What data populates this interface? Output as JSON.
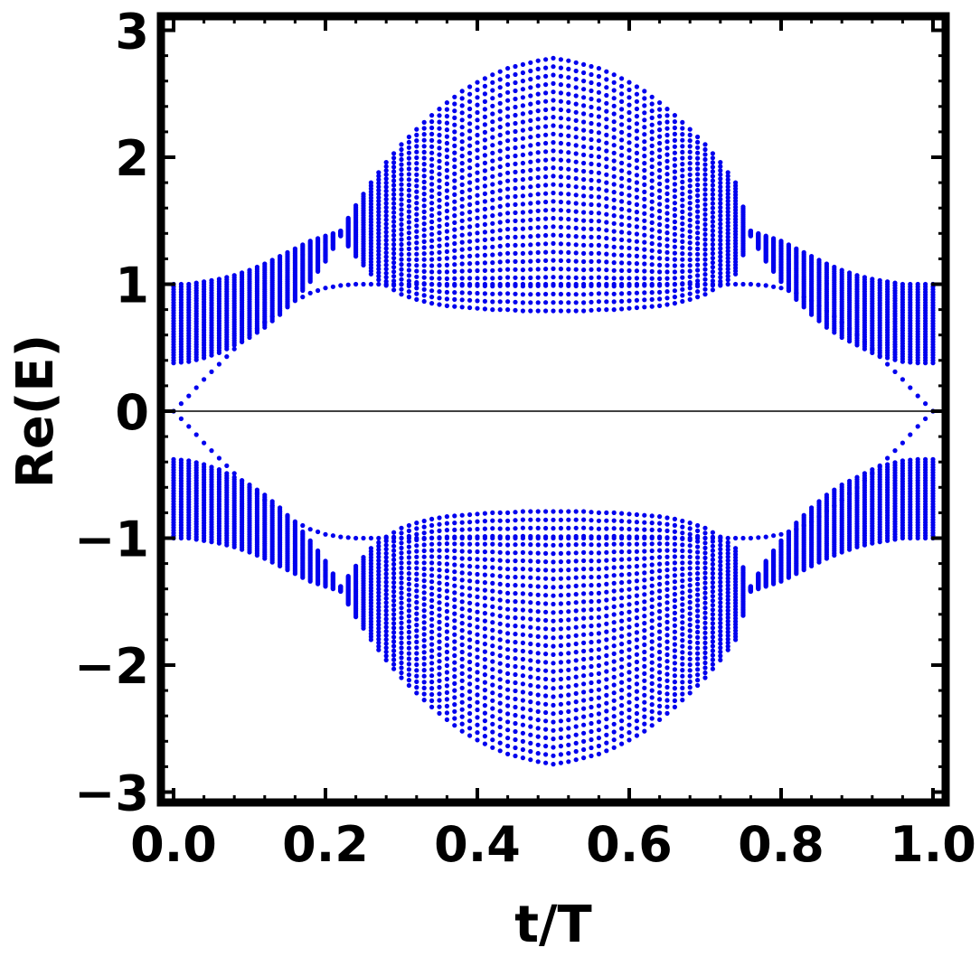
{
  "chart_data": {
    "type": "scatter",
    "xlabel": "t/T",
    "ylabel": "Re(E)",
    "xlim": [
      0.0,
      1.0
    ],
    "ylim": [
      -3.0,
      3.0
    ],
    "xticks": [
      "0.0",
      "0.2",
      "0.4",
      "0.6",
      "0.8",
      "1.0"
    ],
    "yticks": [
      "3",
      "2",
      "1",
      "0",
      "−1",
      "−2",
      "−3"
    ],
    "grid": false,
    "legend": "none",
    "reference_line_y": 0,
    "marker_color": "#0000ee",
    "series": [
      {
        "t": [
          0.0,
          0.02,
          0.04,
          0.06,
          0.08,
          0.1,
          0.12,
          0.14,
          0.16,
          0.18,
          0.2,
          0.22,
          0.24,
          0.26,
          0.28,
          0.3,
          0.32,
          0.34,
          0.36,
          0.38,
          0.4,
          0.42,
          0.44,
          0.46,
          0.48,
          0.5,
          0.52,
          0.54,
          0.56,
          0.58,
          0.6,
          0.62,
          0.64,
          0.66,
          0.68,
          0.7,
          0.72,
          0.74,
          0.76,
          0.78,
          0.8,
          0.82,
          0.84,
          0.86,
          0.88,
          0.9,
          0.92,
          0.94,
          0.96,
          0.98,
          1.0
        ],
        "band_upper_max": [
          1.0,
          1.0,
          1.02,
          1.04,
          1.07,
          1.11,
          1.16,
          1.22,
          1.28,
          1.34,
          1.38,
          1.42,
          1.62,
          1.8,
          1.96,
          2.1,
          2.22,
          2.33,
          2.43,
          2.52,
          2.59,
          2.65,
          2.7,
          2.73,
          2.76,
          2.78,
          2.76,
          2.73,
          2.7,
          2.65,
          2.59,
          2.52,
          2.43,
          2.33,
          2.22,
          2.1,
          1.96,
          1.8,
          1.42,
          1.38,
          1.34,
          1.28,
          1.22,
          1.16,
          1.11,
          1.07,
          1.04,
          1.02,
          1.0,
          1.0,
          1.0
        ],
        "band_upper_min": [
          0.38,
          0.39,
          0.42,
          0.46,
          0.52,
          0.58,
          0.66,
          0.76,
          0.88,
          1.02,
          1.18,
          1.38,
          1.22,
          1.08,
          0.99,
          0.92,
          0.88,
          0.85,
          0.83,
          0.82,
          0.81,
          0.8,
          0.8,
          0.79,
          0.79,
          0.79,
          0.79,
          0.79,
          0.8,
          0.8,
          0.81,
          0.82,
          0.83,
          0.85,
          0.88,
          0.92,
          0.99,
          1.08,
          1.38,
          1.18,
          1.02,
          0.88,
          0.76,
          0.66,
          0.58,
          0.52,
          0.46,
          0.42,
          0.39,
          0.38,
          0.38
        ],
        "edge_state": [
          0.0,
          0.12,
          0.25,
          0.37,
          0.49,
          0.6,
          0.7,
          0.79,
          0.87,
          0.93,
          0.97,
          0.99,
          1.0,
          1.0,
          1.0,
          1.0,
          1.0,
          1.0,
          1.0,
          1.0,
          1.0,
          1.0,
          1.0,
          1.0,
          1.0,
          1.0,
          1.0,
          1.0,
          1.0,
          1.0,
          1.0,
          1.0,
          1.0,
          1.0,
          1.0,
          1.0,
          1.0,
          1.0,
          1.0,
          0.99,
          0.97,
          0.93,
          0.87,
          0.79,
          0.7,
          0.6,
          0.49,
          0.37,
          0.25,
          0.12,
          0.0
        ]
      }
    ]
  }
}
